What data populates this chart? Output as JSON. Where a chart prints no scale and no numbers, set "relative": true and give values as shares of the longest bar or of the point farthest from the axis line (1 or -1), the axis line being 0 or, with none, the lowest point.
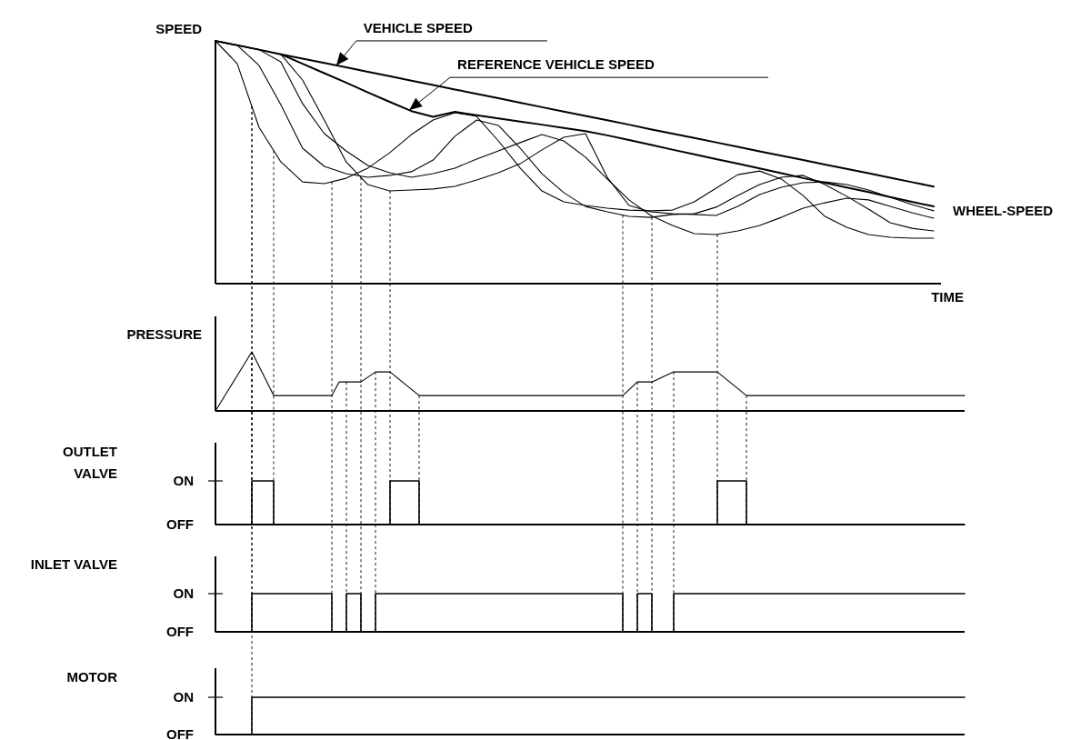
{
  "chart_data": [
    {
      "type": "line",
      "relative": true,
      "ylabel": "SPEED",
      "xlabel": "TIME",
      "line_style": "solid",
      "grid": "x",
      "categories": [
        null,
        null,
        null,
        null,
        null,
        null,
        null,
        null,
        null,
        null,
        null,
        null,
        null,
        null,
        null,
        null,
        null,
        null,
        null,
        null,
        null,
        null,
        null,
        null,
        null,
        null,
        null,
        null,
        null,
        null,
        null,
        null,
        null,
        null
      ],
      "series": [
        {
          "name": "VEHICLE SPEED",
          "color": "#000000",
          "values": [
            1,
            0.982,
            0.964,
            0.945,
            0.927,
            0.909,
            0.891,
            0.873,
            0.855,
            0.836,
            0.818,
            0.8,
            0.782,
            0.764,
            0.745,
            0.727,
            0.709,
            0.691,
            0.673,
            0.655,
            0.636,
            0.618,
            0.6,
            0.582,
            0.564,
            0.545,
            0.527,
            0.509,
            0.491,
            0.473,
            0.455,
            0.436,
            0.418,
            0.4
          ]
        },
        {
          "name": "REFERENCE VEHICLE SPEED",
          "color": "#000000",
          "values": [
            null,
            null,
            null,
            0.945,
            0.906,
            0.867,
            0.828,
            0.788,
            0.749,
            0.711,
            0.687,
            0.708,
            0.694,
            0.681,
            0.668,
            0.655,
            0.641,
            0.628,
            0.611,
            0.592,
            0.572,
            0.552,
            0.533,
            0.513,
            0.494,
            0.475,
            0.455,
            0.435,
            0.416,
            0.396,
            0.377,
            0.357,
            0.337,
            0.318
          ]
        },
        {
          "color": "#000000",
          "values": [
            1,
            0.906,
            0.644,
            0.502,
            0.419,
            0.412,
            0.434,
            0.476,
            0.539,
            0.614,
            0.674,
            0.704,
            0.689,
            0.588,
            0.476,
            0.382,
            0.337,
            0.322,
            0.311,
            0.303,
            0.3,
            0.303,
            0.337,
            0.393,
            0.449,
            0.464,
            0.431,
            0.363,
            0.277,
            0.232,
            0.202,
            0.191,
            0.187,
            0.187
          ]
        },
        {
          "color": "#000000",
          "values": [
            1,
            0.982,
            0.899,
            0.738,
            0.558,
            0.483,
            0.453,
            0.438,
            0.446,
            0.461,
            0.509,
            0.607,
            0.674,
            0.652,
            0.558,
            0.453,
            0.375,
            0.318,
            0.296,
            0.277,
            0.273,
            0.285,
            0.288,
            0.315,
            0.363,
            0.408,
            0.438,
            0.446,
            0.408,
            0.36,
            0.307,
            0.251,
            0.228,
            0.217
          ]
        },
        {
          "color": "#000000",
          "values": [
            1,
            0.982,
            0.964,
            0.914,
            0.742,
            0.618,
            0.547,
            0.487,
            0.457,
            0.438,
            0.453,
            0.476,
            0.513,
            0.547,
            0.581,
            0.614,
            0.588,
            0.521,
            0.431,
            0.345,
            0.281,
            0.24,
            0.206,
            0.202,
            0.217,
            0.24,
            0.273,
            0.311,
            0.333,
            0.352,
            0.345,
            0.318,
            0.292,
            0.27
          ]
        },
        {
          "color": "#000000",
          "values": [
            1,
            0.982,
            0.964,
            0.945,
            0.839,
            0.674,
            0.502,
            0.408,
            0.382,
            0.386,
            0.39,
            0.401,
            0.427,
            0.457,
            0.494,
            0.551,
            0.603,
            0.618,
            0.438,
            0.322,
            0.296,
            0.288,
            0.285,
            0.281,
            0.318,
            0.367,
            0.397,
            0.416,
            0.419,
            0.408,
            0.386,
            0.356,
            0.326,
            0.3
          ]
        }
      ],
      "annotations": [
        "WHEEL-SPEED"
      ]
    },
    {
      "type": "line",
      "relative": true,
      "ylabel": "PRESSURE",
      "line_style": "solid",
      "grid": "x",
      "categories": [
        null,
        null,
        null,
        null,
        null,
        null,
        null,
        null,
        null,
        null,
        null,
        null,
        null,
        null,
        null,
        null,
        null,
        null,
        null,
        null,
        null,
        null,
        null,
        null,
        null,
        null,
        null,
        null,
        null,
        null,
        null,
        null,
        null,
        null,
        null,
        null,
        null,
        null,
        null,
        null,
        null,
        null,
        null,
        null,
        null,
        null,
        null,
        null,
        null,
        null,
        null,
        null,
        null,
        null,
        null,
        null,
        null,
        null,
        null,
        null,
        null,
        null,
        null,
        null,
        null,
        null,
        null,
        null,
        null,
        null,
        null,
        null,
        null,
        null,
        null,
        null,
        null,
        null,
        null,
        null,
        null,
        null,
        null,
        null,
        null,
        null,
        null,
        null,
        null,
        null,
        null,
        null,
        null,
        null,
        null,
        null,
        null,
        null,
        null,
        null,
        null,
        null,
        null,
        null
      ],
      "series": [
        {
          "color": "#000000",
          "values": [
            0,
            0.2,
            0.4,
            0.6,
            0.8,
            1,
            0.753,
            0.507,
            0.26,
            0.26,
            0.26,
            0.26,
            0.26,
            0.26,
            0.26,
            0.26,
            0.26,
            0.49,
            0.49,
            0.49,
            0.49,
            0.575,
            0.66,
            0.66,
            0.66,
            0.56,
            0.46,
            0.36,
            0.26,
            0.26,
            0.26,
            0.26,
            0.26,
            0.26,
            0.26,
            0.26,
            0.26,
            0.26,
            0.26,
            0.26,
            0.26,
            0.26,
            0.26,
            0.26,
            0.26,
            0.26,
            0.26,
            0.26,
            0.26,
            0.26,
            0.26,
            0.26,
            0.26,
            0.26,
            0.26,
            0.26,
            0.26,
            0.375,
            0.49,
            0.49,
            0.49,
            0.547,
            0.603,
            0.66,
            0.66,
            0.66,
            0.66,
            0.66,
            0.66,
            0.66,
            0.56,
            0.46,
            0.36,
            0.26,
            0.26,
            0.26,
            0.26,
            0.26,
            0.26,
            0.26,
            0.26,
            0.26,
            0.26,
            0.26,
            0.26,
            0.26,
            0.26,
            0.26,
            0.26,
            0.26,
            0.26,
            0.26,
            0.26,
            0.26,
            0.26,
            0.26,
            0.26,
            0.26,
            0.26,
            0.26,
            0.26,
            0.26,
            0.26,
            0.26
          ]
        }
      ]
    },
    {
      "type": "step",
      "relative": true,
      "ylabel": "OUTLET\nVALVE",
      "annotations": [
        "ON",
        "OFF"
      ],
      "line_style": "solid",
      "categories": [
        null,
        null,
        null,
        null,
        null,
        null,
        null,
        null,
        null,
        null,
        null,
        null,
        null,
        null,
        null,
        null,
        null,
        null,
        null,
        null,
        null,
        null,
        null,
        null,
        null,
        null,
        null,
        null,
        null,
        null,
        null,
        null,
        null,
        null,
        null,
        null,
        null,
        null,
        null,
        null,
        null,
        null,
        null,
        null,
        null,
        null,
        null,
        null,
        null,
        null,
        null,
        null,
        null,
        null,
        null,
        null,
        null,
        null,
        null,
        null,
        null,
        null,
        null,
        null,
        null,
        null,
        null,
        null,
        null,
        null,
        null,
        null,
        null,
        null,
        null,
        null,
        null,
        null,
        null,
        null,
        null,
        null,
        null,
        null,
        null,
        null,
        null,
        null,
        null,
        null,
        null,
        null,
        null,
        null,
        null,
        null,
        null,
        null,
        null,
        null,
        null,
        null,
        null,
        null
      ],
      "series": [
        {
          "color": "#000000",
          "values": [
            0,
            0,
            0,
            0,
            0,
            1,
            1,
            1,
            0,
            0,
            0,
            0,
            0,
            0,
            0,
            0,
            0,
            0,
            0,
            0,
            0,
            0,
            0,
            0,
            1,
            1,
            1,
            1,
            0,
            0,
            0,
            0,
            0,
            0,
            0,
            0,
            0,
            0,
            0,
            0,
            0,
            0,
            0,
            0,
            0,
            0,
            0,
            0,
            0,
            0,
            0,
            0,
            0,
            0,
            0,
            0,
            0,
            0,
            0,
            0,
            0,
            0,
            0,
            0,
            0,
            0,
            0,
            0,
            0,
            1,
            1,
            1,
            1,
            0,
            0,
            0,
            0,
            0,
            0,
            0,
            0,
            0,
            0,
            0,
            0,
            0,
            0,
            0,
            0,
            0,
            0,
            0,
            0,
            0,
            0,
            0,
            0,
            0,
            0,
            0,
            0,
            0,
            0,
            0
          ]
        }
      ]
    },
    {
      "type": "step",
      "relative": true,
      "ylabel": "INLET VALVE",
      "annotations": [
        "ON",
        "OFF"
      ],
      "line_style": "solid",
      "categories": [
        null,
        null,
        null,
        null,
        null,
        null,
        null,
        null,
        null,
        null,
        null,
        null,
        null,
        null,
        null,
        null,
        null,
        null,
        null,
        null,
        null,
        null,
        null,
        null,
        null,
        null,
        null,
        null,
        null,
        null,
        null,
        null,
        null,
        null,
        null,
        null,
        null,
        null,
        null,
        null,
        null,
        null,
        null,
        null,
        null,
        null,
        null,
        null,
        null,
        null,
        null,
        null,
        null,
        null,
        null,
        null,
        null,
        null,
        null,
        null,
        null,
        null,
        null,
        null,
        null,
        null,
        null,
        null,
        null,
        null,
        null,
        null,
        null,
        null,
        null,
        null,
        null,
        null,
        null,
        null,
        null,
        null,
        null,
        null,
        null,
        null,
        null,
        null,
        null,
        null,
        null,
        null,
        null,
        null,
        null,
        null,
        null,
        null,
        null,
        null,
        null,
        null,
        null,
        null
      ],
      "series": [
        {
          "color": "#000000",
          "values": [
            0,
            0,
            0,
            0,
            0,
            1,
            1,
            1,
            1,
            1,
            1,
            1,
            1,
            1,
            1,
            1,
            0,
            0,
            1,
            1,
            0,
            0,
            1,
            1,
            1,
            1,
            1,
            1,
            1,
            1,
            1,
            1,
            1,
            1,
            1,
            1,
            1,
            1,
            1,
            1,
            1,
            1,
            1,
            1,
            1,
            1,
            1,
            1,
            1,
            1,
            1,
            1,
            1,
            1,
            1,
            1,
            0,
            0,
            1,
            1,
            0,
            0,
            0,
            1,
            1,
            1,
            1,
            1,
            1,
            1,
            1,
            1,
            1,
            1,
            1,
            1,
            1,
            1,
            1,
            1,
            1,
            1,
            1,
            1,
            1,
            1,
            1,
            1,
            1,
            1,
            1,
            1,
            1,
            1,
            1,
            1,
            1,
            1,
            1,
            1,
            1,
            1,
            1,
            1
          ]
        }
      ]
    },
    {
      "type": "step",
      "relative": true,
      "ylabel": "MOTOR",
      "annotations": [
        "ON",
        "OFF"
      ],
      "line_style": "solid",
      "categories": [
        null,
        null,
        null,
        null,
        null,
        null,
        null,
        null,
        null,
        null,
        null,
        null,
        null,
        null,
        null,
        null,
        null,
        null,
        null,
        null,
        null,
        null,
        null,
        null,
        null,
        null,
        null,
        null,
        null,
        null,
        null,
        null,
        null,
        null,
        null,
        null,
        null,
        null,
        null,
        null,
        null,
        null,
        null,
        null,
        null,
        null,
        null,
        null,
        null,
        null,
        null,
        null,
        null,
        null,
        null,
        null,
        null,
        null,
        null,
        null,
        null,
        null,
        null,
        null,
        null,
        null,
        null,
        null,
        null,
        null,
        null,
        null,
        null,
        null,
        null,
        null,
        null,
        null,
        null,
        null,
        null,
        null,
        null,
        null,
        null,
        null,
        null,
        null,
        null,
        null,
        null,
        null,
        null,
        null,
        null,
        null,
        null,
        null,
        null,
        null,
        null,
        null,
        null,
        null
      ],
      "series": [
        {
          "color": "#000000",
          "values": [
            0,
            0,
            0,
            0,
            0,
            1,
            1,
            1,
            1,
            1,
            1,
            1,
            1,
            1,
            1,
            1,
            1,
            1,
            1,
            1,
            1,
            1,
            1,
            1,
            1,
            1,
            1,
            1,
            1,
            1,
            1,
            1,
            1,
            1,
            1,
            1,
            1,
            1,
            1,
            1,
            1,
            1,
            1,
            1,
            1,
            1,
            1,
            1,
            1,
            1,
            1,
            1,
            1,
            1,
            1,
            1,
            1,
            1,
            1,
            1,
            1,
            1,
            1,
            1,
            1,
            1,
            1,
            1,
            1,
            1,
            1,
            1,
            1,
            1,
            1,
            1,
            1,
            1,
            1,
            1,
            1,
            1,
            1,
            1,
            1,
            1,
            1,
            1,
            1,
            1,
            1,
            1,
            1,
            1,
            1,
            1,
            1,
            1,
            1,
            1,
            1,
            1,
            1,
            1
          ]
        }
      ]
    }
  ]
}
